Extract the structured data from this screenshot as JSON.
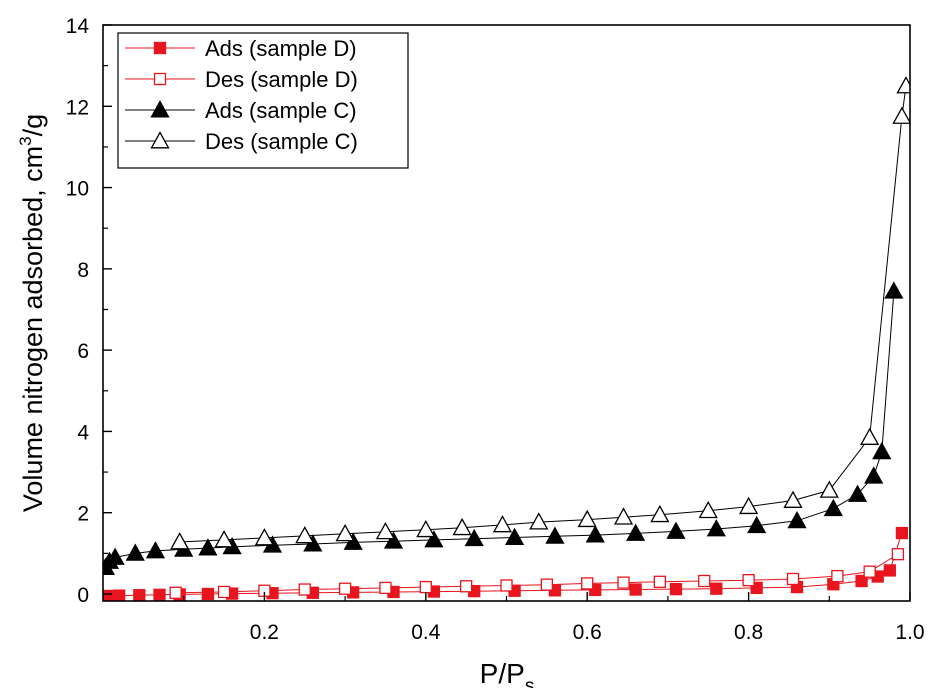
{
  "chart_data": {
    "type": "scatter",
    "title": "",
    "xlabel_main": "P/P",
    "xlabel_sub": "s",
    "ylabel_main": "Volume nitrogen adsorbed, cm",
    "ylabel_sup": "3",
    "ylabel_tail": "/g",
    "xlim": [
      0.0,
      1.0
    ],
    "ylim": [
      -0.25,
      14
    ],
    "x_ticks": [
      0.2,
      0.4,
      0.6,
      0.8,
      1.0
    ],
    "x_tick_labels": [
      "0.2",
      "0.4",
      "0.6",
      "0.8",
      "1.0"
    ],
    "y_ticks": [
      0,
      2,
      4,
      6,
      8,
      10,
      12,
      14
    ],
    "y_tick_labels": [
      "0",
      "2",
      "4",
      "6",
      "8",
      "10",
      "12",
      "14"
    ],
    "legend_position": "top-left",
    "grid": false,
    "series": [
      {
        "name": "Ads (sample D)",
        "color": "#e8141e",
        "marker": "square",
        "filled": true,
        "x": [
          0.005,
          0.01,
          0.02,
          0.045,
          0.07,
          0.095,
          0.13,
          0.16,
          0.21,
          0.26,
          0.31,
          0.36,
          0.41,
          0.46,
          0.51,
          0.56,
          0.61,
          0.66,
          0.71,
          0.76,
          0.81,
          0.86,
          0.905,
          0.94,
          0.96,
          0.975,
          0.99
        ],
        "y": [
          -0.05,
          -0.05,
          -0.04,
          -0.03,
          -0.02,
          -0.01,
          0.0,
          0.01,
          0.02,
          0.03,
          0.04,
          0.05,
          0.06,
          0.07,
          0.08,
          0.09,
          0.1,
          0.11,
          0.12,
          0.13,
          0.15,
          0.17,
          0.24,
          0.32,
          0.43,
          0.58,
          1.5
        ]
      },
      {
        "name": "Des (sample D)",
        "color": "#e8141e",
        "marker": "square",
        "filled": false,
        "x": [
          0.09,
          0.15,
          0.2,
          0.25,
          0.3,
          0.35,
          0.4,
          0.45,
          0.5,
          0.55,
          0.6,
          0.645,
          0.69,
          0.745,
          0.8,
          0.855,
          0.91,
          0.95,
          0.985
        ],
        "y": [
          0.03,
          0.05,
          0.08,
          0.11,
          0.13,
          0.15,
          0.17,
          0.19,
          0.21,
          0.23,
          0.26,
          0.28,
          0.3,
          0.32,
          0.34,
          0.37,
          0.44,
          0.55,
          0.98
        ]
      },
      {
        "name": "Ads (sample C)",
        "color": "#000000",
        "marker": "triangle",
        "filled": true,
        "x": [
          0.003,
          0.008,
          0.015,
          0.04,
          0.065,
          0.1,
          0.13,
          0.16,
          0.21,
          0.26,
          0.31,
          0.36,
          0.41,
          0.46,
          0.51,
          0.56,
          0.61,
          0.66,
          0.71,
          0.76,
          0.81,
          0.86,
          0.905,
          0.935,
          0.955,
          0.965,
          0.98
        ],
        "y": [
          0.65,
          0.8,
          0.9,
          1.0,
          1.06,
          1.1,
          1.13,
          1.16,
          1.2,
          1.23,
          1.27,
          1.3,
          1.33,
          1.36,
          1.39,
          1.42,
          1.45,
          1.49,
          1.54,
          1.6,
          1.68,
          1.8,
          2.1,
          2.45,
          2.9,
          3.5,
          7.45
        ]
      },
      {
        "name": "Des (sample C)",
        "color": "#000000",
        "marker": "triangle",
        "filled": false,
        "x": [
          0.095,
          0.15,
          0.2,
          0.25,
          0.3,
          0.35,
          0.4,
          0.445,
          0.495,
          0.54,
          0.6,
          0.645,
          0.69,
          0.75,
          0.8,
          0.855,
          0.9,
          0.95,
          0.99,
          0.995
        ],
        "y": [
          1.28,
          1.33,
          1.38,
          1.43,
          1.48,
          1.53,
          1.58,
          1.63,
          1.7,
          1.77,
          1.83,
          1.89,
          1.95,
          2.05,
          2.15,
          2.3,
          2.55,
          3.85,
          11.75,
          12.5
        ]
      }
    ]
  }
}
